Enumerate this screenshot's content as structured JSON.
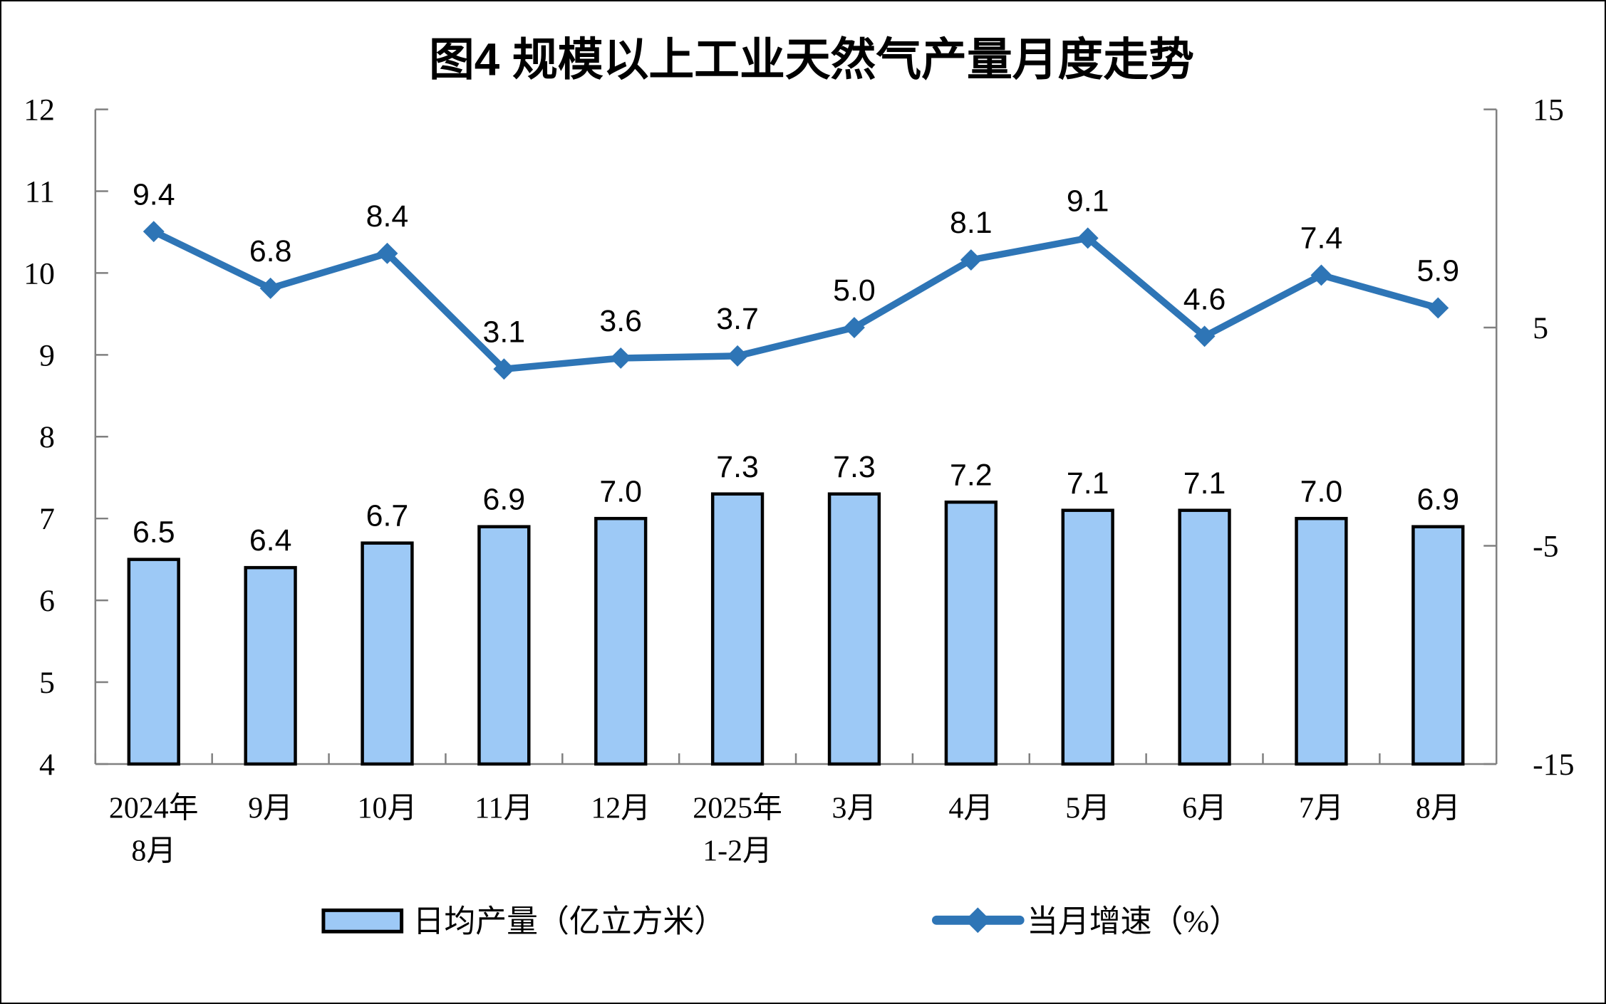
{
  "frame": {
    "background": "#FFFFFF",
    "border_color": "#000000"
  },
  "chart_data": {
    "type": "combo-bar-line",
    "title": "图4 规模以上工业天然气产量月度走势",
    "categories": [
      [
        "2024年",
        "8月"
      ],
      [
        "9月"
      ],
      [
        "10月"
      ],
      [
        "11月"
      ],
      [
        "12月"
      ],
      [
        "2025年",
        "1-2月"
      ],
      [
        "3月"
      ],
      [
        "4月"
      ],
      [
        "5月"
      ],
      [
        "6月"
      ],
      [
        "7月"
      ],
      [
        "8月"
      ]
    ],
    "series": [
      {
        "name": "日均产量（亿立方米）",
        "type": "bar",
        "axis": "left",
        "color": "#9DC9F6",
        "border_color": "#000000",
        "values": [
          6.5,
          6.4,
          6.7,
          6.9,
          7.0,
          7.3,
          7.3,
          7.2,
          7.1,
          7.1,
          7.0,
          6.9
        ]
      },
      {
        "name": "当月增速（%）",
        "type": "line",
        "axis": "right",
        "color": "#2E75B6",
        "marker": "diamond",
        "values": [
          9.4,
          6.8,
          8.4,
          3.1,
          3.6,
          3.7,
          5.0,
          8.1,
          9.1,
          4.6,
          7.4,
          5.9
        ]
      }
    ],
    "left_axis": {
      "min": 4,
      "max": 12,
      "ticks": [
        4,
        5,
        6,
        7,
        8,
        9,
        10,
        11,
        12
      ]
    },
    "right_axis": {
      "min": -15,
      "max": 15,
      "ticks": [
        15,
        5,
        -5,
        -15
      ]
    },
    "grid": false,
    "legend_position": "bottom",
    "axis_color": "#808080"
  }
}
